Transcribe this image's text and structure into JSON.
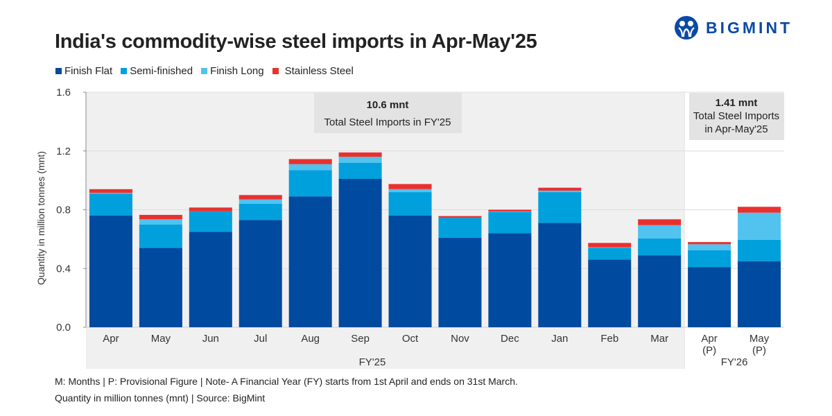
{
  "title": "India's commodity-wise steel imports in Apr-May'25",
  "brand": {
    "name": "BIGMINT",
    "icon": "bigmint-logo-icon",
    "color": "#0a4aa6"
  },
  "legend": [
    {
      "name": "Finish Flat",
      "color": "#004a9f"
    },
    {
      "name": "Semi-finished",
      "color": "#00a0dd"
    },
    {
      "name": "Finish Long",
      "color": "#52c2ef"
    },
    {
      "name": "Stainless Steel",
      "color": "#e8312f"
    }
  ],
  "annotations": [
    {
      "value": "10.6 mnt",
      "text_lines": [
        "Total Steel Imports in FY'25"
      ]
    },
    {
      "value": "1.41 mnt",
      "text_lines": [
        "Total Steel Imports",
        "in Apr-May'25"
      ]
    }
  ],
  "footer": {
    "line1": "M: Months | P: Provisional Figure | Note- A Financial Year (FY) starts from 1st April and ends on 31st March.",
    "line2": "Quantity in million tonnes (mnt) | Source: BigMint"
  },
  "chart_data": {
    "type": "bar",
    "stacked": true,
    "title": "India's commodity-wise steel imports in Apr-May'25",
    "xlabel": "",
    "ylabel": "Quantity in million tonnes (mnt)",
    "ylim": [
      0,
      1.6
    ],
    "yticks": [
      "0.0",
      "0.4",
      "0.8",
      "1.2",
      "1.6"
    ],
    "ytick_values": [
      0,
      0.4,
      0.8,
      1.2,
      1.6
    ],
    "grid": true,
    "legend_position": "top-left",
    "categories": [
      "Apr",
      "May",
      "Jun",
      "Jul",
      "Aug",
      "Sep",
      "Oct",
      "Nov",
      "Dec",
      "Jan",
      "Feb",
      "Mar",
      "Apr\n(P)",
      "May\n(P)"
    ],
    "groups": [
      {
        "label": "FY'25",
        "start": 0,
        "end": 11,
        "background": "#f0f0f0"
      },
      {
        "label": "FY'26",
        "start": 12,
        "end": 13,
        "background": "#ffffff"
      }
    ],
    "series": [
      {
        "name": "Finish Flat",
        "color": "#004a9f",
        "values": [
          0.76,
          0.54,
          0.65,
          0.73,
          0.89,
          1.01,
          0.76,
          0.61,
          0.64,
          0.71,
          0.46,
          0.49,
          0.41,
          0.45
        ]
      },
      {
        "name": "Semi-finished",
        "color": "#00a0dd",
        "values": [
          0.15,
          0.16,
          0.14,
          0.11,
          0.18,
          0.11,
          0.16,
          0.135,
          0.145,
          0.21,
          0.08,
          0.115,
          0.115,
          0.145
        ]
      },
      {
        "name": "Finish Long",
        "color": "#52c2ef",
        "values": [
          0.005,
          0.035,
          0.0,
          0.03,
          0.04,
          0.04,
          0.02,
          0.0,
          0.003,
          0.01,
          0.004,
          0.09,
          0.04,
          0.185
        ]
      },
      {
        "name": "Stainless Steel",
        "color": "#e8312f",
        "values": [
          0.025,
          0.03,
          0.025,
          0.03,
          0.035,
          0.03,
          0.035,
          0.012,
          0.012,
          0.02,
          0.03,
          0.04,
          0.015,
          0.04
        ]
      }
    ],
    "annotations": [
      {
        "value": "10.6 mnt",
        "text": "Total Steel Imports in FY'25",
        "group": "FY'25"
      },
      {
        "value": "1.41 mnt",
        "text": "Total Steel Imports in Apr-May'25",
        "group": "FY'26"
      }
    ]
  }
}
